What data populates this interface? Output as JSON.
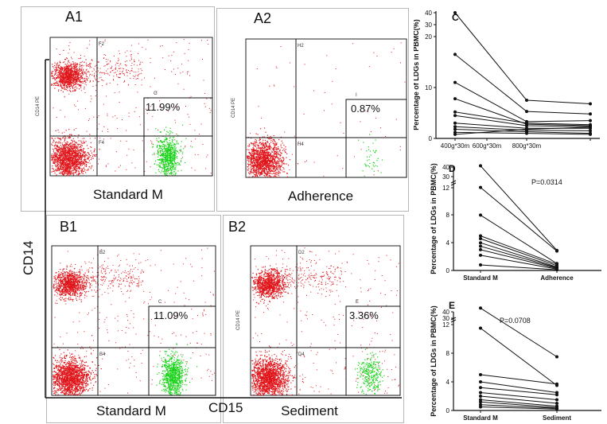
{
  "flow_panels": [
    {
      "id": "A1",
      "title": "A1",
      "subtitle": "Standard M",
      "gate_pct": "11.99%",
      "ylabel": "CD14 PE",
      "quads": [
        "F2",
        "F4"
      ],
      "gate": "G"
    },
    {
      "id": "A2",
      "title": "A2",
      "subtitle": "Adherence",
      "gate_pct": "0.87%",
      "ylabel": "CD14 PE",
      "quads": [
        "H2",
        "H4"
      ],
      "gate": "I"
    },
    {
      "id": "B1",
      "title": "B1",
      "subtitle": "Standard M",
      "gate_pct": "11.09%",
      "ylabel": "",
      "quads": [
        "B2",
        "B4"
      ],
      "gate": "C"
    },
    {
      "id": "B2",
      "title": "B2",
      "subtitle": "Sediment",
      "gate_pct": "3.36%",
      "ylabel": "CD14 PE",
      "quads": [
        "D2",
        "D4"
      ],
      "gate": "E"
    }
  ],
  "axis_labels": {
    "cd14": "CD14",
    "cd15": "CD15"
  },
  "chart_data": [
    {
      "type": "line",
      "panel": "C",
      "ylabel": "Percentage of LDGs in PBMC(%)",
      "categories": [
        "400g*30m",
        "600g*30m",
        "800g*30m",
        ""
      ],
      "yticks": [
        "0",
        "10",
        "20",
        "30",
        "40"
      ],
      "series": [
        {
          "values": [
            40,
            null,
            7.5,
            6.8
          ]
        },
        {
          "values": [
            16.5,
            null,
            5.3,
            4.8
          ]
        },
        {
          "values": [
            11,
            null,
            3.3,
            3.5
          ]
        },
        {
          "values": [
            7.8,
            null,
            2.8,
            2.5
          ]
        },
        {
          "values": [
            5.2,
            null,
            3.0,
            2.7
          ]
        },
        {
          "values": [
            4.5,
            null,
            2.5,
            2.3
          ]
        },
        {
          "values": [
            3.0,
            null,
            2.0,
            2.0
          ]
        },
        {
          "values": [
            2.3,
            null,
            1.6,
            1.5
          ]
        },
        {
          "values": [
            1.8,
            null,
            1.3,
            1.0
          ]
        },
        {
          "values": [
            1.2,
            null,
            1.0,
            0.8
          ]
        },
        {
          "values": [
            0.8,
            null,
            1.8,
            2.2
          ]
        }
      ]
    },
    {
      "type": "line",
      "panel": "D",
      "ylabel": "Percentage of LDGs in PBMC(%)",
      "categories": [
        "Standard M",
        "Adherence"
      ],
      "yticks": [
        "0",
        "4",
        "8",
        "12",
        "30",
        "40"
      ],
      "annotation": "P=0.0314",
      "series": [
        {
          "values": [
            35,
            2.9
          ]
        },
        {
          "values": [
            12,
            2.8
          ]
        },
        {
          "values": [
            8,
            1.0
          ]
        },
        {
          "values": [
            5,
            0.9
          ]
        },
        {
          "values": [
            4.6,
            0.7
          ]
        },
        {
          "values": [
            4.0,
            0.5
          ]
        },
        {
          "values": [
            3.5,
            0.4
          ]
        },
        {
          "values": [
            3.0,
            0.3
          ]
        },
        {
          "values": [
            2.2,
            0.2
          ]
        },
        {
          "values": [
            0.8,
            0.1
          ]
        }
      ]
    },
    {
      "type": "line",
      "panel": "E",
      "ylabel": "Percentage of LDGs in PBMC(%)",
      "categories": [
        "Standard M",
        "Sediment"
      ],
      "yticks": [
        "0",
        "4",
        "8",
        "12",
        "30",
        "40"
      ],
      "annotation": "P=0.0708",
      "series": [
        {
          "values": [
            35,
            7.5
          ]
        },
        {
          "values": [
            11.5,
            3.5
          ]
        },
        {
          "values": [
            5,
            3.7
          ]
        },
        {
          "values": [
            4,
            2.5
          ]
        },
        {
          "values": [
            3.2,
            2.2
          ]
        },
        {
          "values": [
            2.5,
            1.5
          ]
        },
        {
          "values": [
            2.0,
            1.0
          ]
        },
        {
          "values": [
            1.5,
            0.6
          ]
        },
        {
          "values": [
            1.2,
            0.4
          ]
        },
        {
          "values": [
            0.8,
            0.3
          ]
        },
        {
          "values": [
            0.5,
            0.2
          ]
        }
      ]
    }
  ],
  "colors": {
    "red": "#e0161b",
    "green": "#18d318",
    "line": "#111111"
  }
}
